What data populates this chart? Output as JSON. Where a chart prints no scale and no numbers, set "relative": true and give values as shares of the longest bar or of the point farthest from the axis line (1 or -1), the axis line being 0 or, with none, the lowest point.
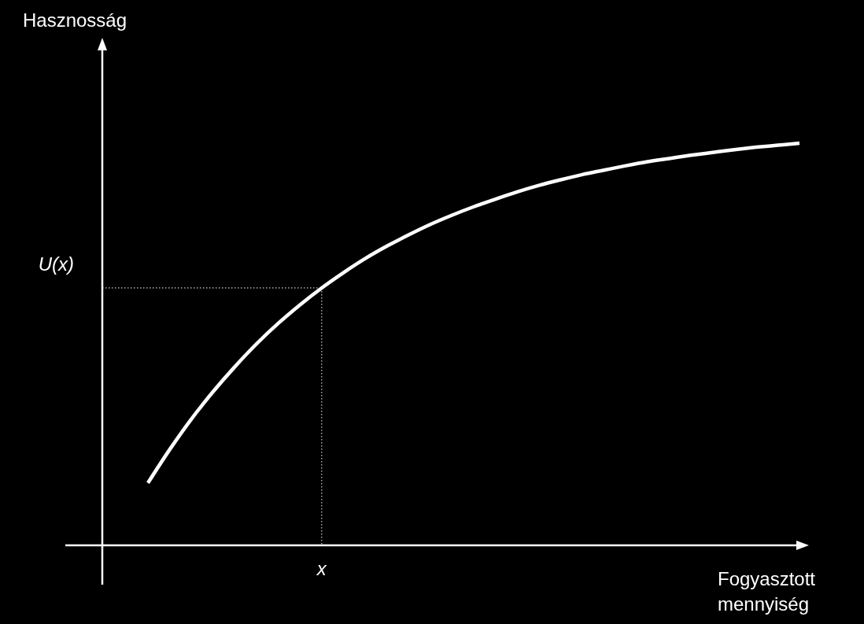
{
  "chart_data": {
    "type": "line",
    "relative": true,
    "xlabel": "Fogyasztott mennyiség",
    "categories": [
      null,
      null,
      null,
      null,
      null,
      null,
      null,
      null,
      null,
      null,
      null,
      null,
      null,
      null,
      null,
      null,
      null,
      null,
      null,
      null,
      null,
      null,
      null,
      null,
      null,
      null,
      null,
      null,
      null,
      null,
      null
    ],
    "series": [
      {
        "color": "#ffffff",
        "values": [
          0.155,
          0.238,
          0.314,
          0.382,
          0.444,
          0.501,
          0.552,
          0.598,
          0.64,
          0.678,
          0.713,
          0.744,
          0.772,
          0.798,
          0.821,
          0.842,
          0.861,
          0.879,
          0.895,
          0.909,
          0.922,
          0.933,
          0.944,
          0.954,
          0.962,
          0.97,
          0.977,
          0.984,
          0.99,
          0.995,
          1
        ]
      }
    ],
    "ref_lines": [
      {
        "axis": "y",
        "value": 0.64,
        "label": "U(x)",
        "line_style": "dotted"
      }
    ],
    "annotations": [
      "x",
      "Hasznosság"
    ],
    "marker": "none",
    "line_style": "solid",
    "grid": false
  }
}
